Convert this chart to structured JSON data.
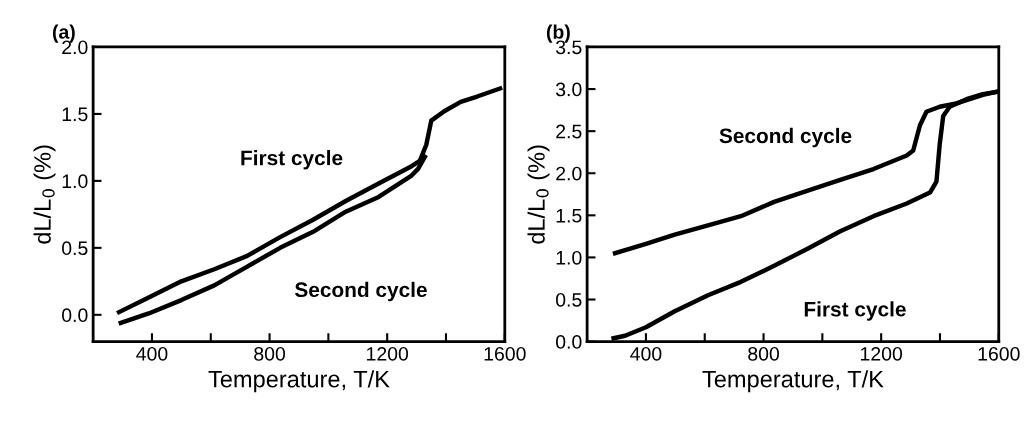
{
  "chart_data": [
    {
      "type": "line",
      "title": "(a)",
      "xlabel": "Temperature, T/K",
      "ylabel": "dL/L$_{0}$ (%)",
      "xlim": [
        200,
        1600
      ],
      "ylim": [
        -0.2,
        2.0
      ],
      "xticks": [
        400,
        {
          "value": 600,
          "label": null
        },
        800,
        {
          "value": 1000,
          "label": null
        },
        1200,
        {
          "value": 1400,
          "label": null
        },
        1600
      ],
      "yticks": [
        {
          "value": 0,
          "label": "0.0"
        },
        0.5,
        {
          "value": 1,
          "label": "1.0"
        },
        1.5,
        {
          "value": 2,
          "label": "2.0"
        }
      ],
      "grid": false,
      "legend": false,
      "marker": "none",
      "line_style": "solid",
      "series": [
        {
          "name": "First cycle",
          "color": "#000000",
          "x": [
            288,
            389,
            500,
            612,
            724,
            836,
            948,
            1059,
            1171,
            1283,
            1311,
            1333,
            1350,
            1394,
            1450,
            1506,
            1584
          ],
          "values": [
            0.02,
            0.13,
            0.25,
            0.34,
            0.44,
            0.58,
            0.71,
            0.85,
            0.98,
            1.11,
            1.15,
            1.27,
            1.45,
            1.52,
            1.59,
            1.63,
            1.69
          ]
        },
        {
          "name": "Second cycle",
          "color": "#000000",
          "x": [
            294,
            389,
            500,
            612,
            724,
            836,
            948,
            1059,
            1171,
            1283,
            1305,
            1328
          ],
          "values": [
            -0.06,
            0.01,
            0.11,
            0.22,
            0.36,
            0.5,
            0.62,
            0.77,
            0.88,
            1.04,
            1.09,
            1.18
          ]
        }
      ]
    },
    {
      "type": "line",
      "title": "(b)",
      "xlabel": "Temperature, T/K",
      "ylabel": "dL/L$_{0}$ (%)",
      "xlim": [
        200,
        1600
      ],
      "ylim": [
        0.0,
        3.5
      ],
      "xticks": [
        400,
        {
          "value": 600,
          "label": null
        },
        800,
        {
          "value": 1000,
          "label": null
        },
        1200,
        {
          "value": 1400,
          "label": null
        },
        1600
      ],
      "yticks": [
        {
          "value": 0,
          "label": "0.0"
        },
        0.5,
        {
          "value": 1,
          "label": "1.0"
        },
        1.5,
        {
          "value": 2,
          "label": "2.0"
        },
        2.5,
        {
          "value": 3,
          "label": "3.0"
        },
        3.5
      ],
      "grid": false,
      "legend": false,
      "marker": "none",
      "line_style": "solid",
      "series": [
        {
          "name": "Second cycle",
          "color": "#000000",
          "x": [
            295,
            400,
            498,
            611,
            723,
            836,
            948,
            1061,
            1174,
            1287,
            1309,
            1332,
            1354,
            1399,
            1456,
            1546,
            1597
          ],
          "values": [
            1.05,
            1.16,
            1.27,
            1.38,
            1.49,
            1.66,
            1.79,
            1.92,
            2.05,
            2.21,
            2.27,
            2.57,
            2.73,
            2.79,
            2.83,
            2.93,
            2.97
          ]
        },
        {
          "name": "First cycle",
          "color": "#000000",
          "x": [
            290,
            329,
            400,
            498,
            611,
            723,
            836,
            948,
            1061,
            1174,
            1287,
            1366,
            1388,
            1399,
            1411,
            1433,
            1490,
            1546,
            1597
          ],
          "values": [
            0.04,
            0.07,
            0.17,
            0.36,
            0.55,
            0.71,
            0.9,
            1.1,
            1.31,
            1.49,
            1.64,
            1.77,
            1.9,
            2.34,
            2.68,
            2.79,
            2.88,
            2.94,
            2.97
          ]
        }
      ]
    }
  ]
}
